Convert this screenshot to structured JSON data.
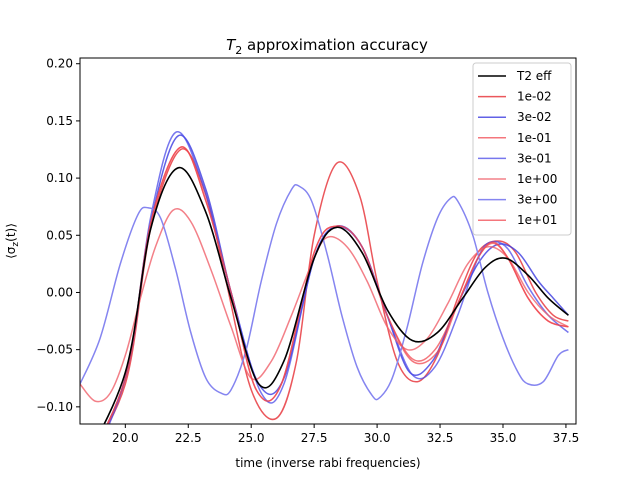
{
  "chart_data": {
    "type": "line",
    "title": {
      "main": "T",
      "sub": "2",
      "rest": " approximation accuracy"
    },
    "xlabel": "time (inverse rabi frequencies)",
    "ylabel": {
      "pre": "⟨σ",
      "sub": "z",
      "post": "(t)⟩"
    },
    "xlim": [
      18.2,
      37.9
    ],
    "ylim": [
      -0.115,
      0.205
    ],
    "xticks": [
      "20.0",
      "22.5",
      "25.0",
      "27.5",
      "30.0",
      "32.5",
      "35.0",
      "37.5"
    ],
    "yticks": [
      "−0.10",
      "−0.05",
      "0.00",
      "0.05",
      "0.10",
      "0.15",
      "0.20"
    ],
    "legend_position": "top-right",
    "grid": false,
    "series": [
      {
        "name": "1e-02",
        "color": "#e8393f",
        "alpha": 0.85,
        "x": [
          18.2,
          20.0,
          21.0,
          22.2,
          23.2,
          24.0,
          25.0,
          26.0,
          26.8,
          27.5,
          28.4,
          29.3,
          30.0,
          30.8,
          31.6,
          32.4,
          33.2,
          34.0,
          34.8,
          35.5,
          36.3,
          37.0,
          37.6
        ],
        "y": [
          -0.155,
          -0.08,
          0.055,
          0.125,
          0.085,
          0.01,
          -0.085,
          -0.11,
          -0.06,
          0.05,
          0.113,
          0.085,
          0.01,
          -0.06,
          -0.078,
          -0.055,
          -0.005,
          0.035,
          0.045,
          0.035,
          0.0,
          -0.02,
          -0.025
        ]
      },
      {
        "name": "3e-02",
        "color": "#3a3ae0",
        "alpha": 0.8,
        "x": [
          18.2,
          20.0,
          21.0,
          22.1,
          23.2,
          24.2,
          25.3,
          26.3,
          27.5,
          28.4,
          29.4,
          30.4,
          31.3,
          32.2,
          33.0,
          34.0,
          34.8,
          35.6,
          36.4,
          37.0,
          37.6
        ],
        "y": [
          -0.16,
          -0.075,
          0.06,
          0.137,
          0.09,
          0.0,
          -0.08,
          -0.075,
          0.03,
          0.058,
          0.04,
          -0.02,
          -0.07,
          -0.06,
          -0.02,
          0.025,
          0.042,
          0.035,
          0.01,
          -0.005,
          -0.02
        ]
      },
      {
        "name": "1e-01",
        "color": "#f04850",
        "alpha": 0.75,
        "x": [
          18.2,
          20.0,
          21.0,
          22.2,
          23.2,
          24.2,
          25.2,
          26.2,
          27.5,
          28.4,
          29.4,
          30.4,
          31.4,
          32.4,
          33.2,
          34.0,
          34.6,
          35.2,
          36.0,
          36.8,
          37.6
        ],
        "y": [
          -0.16,
          -0.075,
          0.06,
          0.127,
          0.08,
          0.0,
          -0.085,
          -0.08,
          0.035,
          0.058,
          0.04,
          -0.02,
          -0.06,
          -0.052,
          -0.01,
          0.03,
          0.043,
          0.03,
          -0.005,
          -0.025,
          -0.03
        ]
      },
      {
        "name": "3e-01",
        "color": "#4a4ae8",
        "alpha": 0.75,
        "x": [
          18.2,
          20.0,
          21.0,
          22.0,
          23.1,
          24.2,
          25.4,
          26.3,
          27.5,
          28.4,
          29.4,
          30.4,
          31.4,
          32.3,
          33.2,
          34.0,
          34.5,
          35.2,
          36.0,
          36.8,
          37.6
        ],
        "y": [
          -0.17,
          -0.075,
          0.065,
          0.14,
          0.093,
          0.0,
          -0.088,
          -0.08,
          0.03,
          0.057,
          0.04,
          -0.02,
          -0.072,
          -0.065,
          -0.02,
          0.03,
          0.044,
          0.038,
          0.005,
          -0.02,
          -0.035
        ]
      },
      {
        "name": "1e+00",
        "color": "#f0606a",
        "alpha": 0.8,
        "x": [
          18.2,
          18.8,
          19.4,
          20.0,
          20.6,
          21.2,
          21.9,
          22.6,
          23.4,
          24.2,
          25.0,
          25.8,
          26.6,
          27.4,
          28.0,
          28.8,
          29.6,
          30.4,
          31.2,
          32.0,
          32.8,
          33.6,
          34.4,
          35.2,
          36.0,
          36.8,
          37.6
        ],
        "y": [
          -0.08,
          -0.095,
          -0.088,
          -0.055,
          -0.005,
          0.04,
          0.072,
          0.062,
          0.02,
          -0.03,
          -0.075,
          -0.06,
          -0.02,
          0.025,
          0.048,
          0.04,
          0.01,
          -0.03,
          -0.05,
          -0.04,
          -0.01,
          0.025,
          0.04,
          0.03,
          0.0,
          -0.02,
          -0.03
        ]
      },
      {
        "name": "3e+00",
        "color": "#8585f0",
        "alpha": 1.0,
        "x": [
          18.2,
          19.0,
          19.8,
          20.5,
          20.9,
          21.4,
          22.0,
          22.6,
          23.2,
          23.8,
          24.2,
          24.8,
          25.4,
          26.0,
          26.6,
          26.9,
          27.4,
          28.0,
          28.6,
          29.2,
          29.8,
          30.1,
          30.6,
          31.2,
          31.8,
          32.4,
          32.9,
          33.2,
          33.8,
          34.4,
          35.0,
          35.6,
          36.0,
          36.6,
          37.2,
          37.6
        ],
        "y": [
          -0.08,
          -0.04,
          0.025,
          0.068,
          0.074,
          0.065,
          0.02,
          -0.035,
          -0.075,
          -0.088,
          -0.085,
          -0.05,
          0.01,
          0.06,
          0.09,
          0.093,
          0.08,
          0.035,
          -0.02,
          -0.065,
          -0.09,
          -0.092,
          -0.075,
          -0.03,
          0.025,
          0.065,
          0.082,
          0.08,
          0.05,
          0.0,
          -0.04,
          -0.07,
          -0.08,
          -0.078,
          -0.055,
          -0.05
        ]
      },
      {
        "name": "1e+01",
        "color": "#f04850",
        "alpha": 0.75,
        "x": [
          18.2,
          20.0,
          21.0,
          22.2,
          23.2,
          24.2,
          25.2,
          26.2,
          27.5,
          28.4,
          29.4,
          30.4,
          31.4,
          32.3,
          33.2,
          34.0,
          34.6,
          35.2,
          36.0,
          36.8,
          37.6
        ],
        "y": [
          -0.16,
          -0.075,
          0.06,
          0.127,
          0.08,
          0.0,
          -0.085,
          -0.08,
          0.035,
          0.058,
          0.04,
          -0.02,
          -0.058,
          -0.05,
          -0.01,
          0.03,
          0.044,
          0.03,
          -0.005,
          -0.025,
          -0.03
        ]
      },
      {
        "name": "T2 eff",
        "color": "#000000",
        "alpha": 1.0,
        "width": 1.6,
        "x": [
          18.2,
          20.0,
          21.0,
          22.1,
          23.2,
          24.2,
          25.3,
          26.3,
          27.5,
          28.4,
          29.4,
          30.4,
          31.4,
          32.4,
          33.4,
          34.3,
          35.1,
          36.0,
          36.8,
          37.6
        ],
        "y": [
          -0.155,
          -0.07,
          0.055,
          0.109,
          0.07,
          -0.005,
          -0.08,
          -0.06,
          0.03,
          0.057,
          0.035,
          -0.015,
          -0.042,
          -0.035,
          -0.005,
          0.022,
          0.03,
          0.015,
          -0.005,
          -0.02
        ]
      }
    ],
    "legend_order": [
      "T2 eff",
      "1e-02",
      "3e-02",
      "1e-01",
      "3e-01",
      "1e+00",
      "3e+00",
      "1e+01"
    ]
  }
}
